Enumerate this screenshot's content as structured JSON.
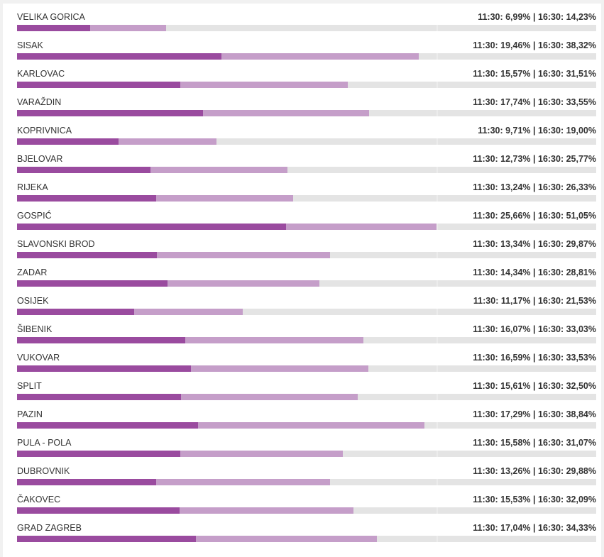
{
  "chart_data": {
    "type": "bar",
    "orientation": "horizontal",
    "scale_max_percent": 40,
    "series": [
      {
        "name": "11:30",
        "color": "#9a4b9f"
      },
      {
        "name": "16:30",
        "color": "#c59ec9"
      }
    ],
    "rows": [
      {
        "name": "VELIKA GORICA",
        "v1130": 6.99,
        "v1630": 14.23,
        "label": "11:30: 6,99% | 16:30: 14,23%"
      },
      {
        "name": "SISAK",
        "v1130": 19.46,
        "v1630": 38.32,
        "label": "11:30: 19,46% | 16:30: 38,32%"
      },
      {
        "name": "KARLOVAC",
        "v1130": 15.57,
        "v1630": 31.51,
        "label": "11:30: 15,57% | 16:30: 31,51%"
      },
      {
        "name": "VARAŽDIN",
        "v1130": 17.74,
        "v1630": 33.55,
        "label": "11:30: 17,74% | 16:30: 33,55%"
      },
      {
        "name": "KOPRIVNICA",
        "v1130": 9.71,
        "v1630": 19.0,
        "label": "11:30: 9,71% | 16:30: 19,00%"
      },
      {
        "name": "BJELOVAR",
        "v1130": 12.73,
        "v1630": 25.77,
        "label": "11:30: 12,73% | 16:30: 25,77%"
      },
      {
        "name": "RIJEKA",
        "v1130": 13.24,
        "v1630": 26.33,
        "label": "11:30: 13,24% | 16:30: 26,33%"
      },
      {
        "name": "GOSPIĆ",
        "v1130": 25.66,
        "v1630": 51.05,
        "label": "11:30: 25,66% | 16:30: 51,05%"
      },
      {
        "name": "SLAVONSKI BROD",
        "v1130": 13.34,
        "v1630": 29.87,
        "label": "11:30: 13,34% | 16:30: 29,87%"
      },
      {
        "name": "ZADAR",
        "v1130": 14.34,
        "v1630": 28.81,
        "label": "11:30: 14,34% | 16:30: 28,81%"
      },
      {
        "name": "OSIJEK",
        "v1130": 11.17,
        "v1630": 21.53,
        "label": "11:30: 11,17% | 16:30: 21,53%"
      },
      {
        "name": "ŠIBENIK",
        "v1130": 16.07,
        "v1630": 33.03,
        "label": "11:30: 16,07% | 16:30: 33,03%"
      },
      {
        "name": "VUKOVAR",
        "v1130": 16.59,
        "v1630": 33.53,
        "label": "11:30: 16,59% | 16:30: 33,53%"
      },
      {
        "name": "SPLIT",
        "v1130": 15.61,
        "v1630": 32.5,
        "label": "11:30: 15,61% | 16:30: 32,50%"
      },
      {
        "name": "PAZIN",
        "v1130": 17.29,
        "v1630": 38.84,
        "label": "11:30: 17,29% | 16:30: 38,84%"
      },
      {
        "name": "PULA - POLA",
        "v1130": 15.58,
        "v1630": 31.07,
        "label": "11:30: 15,58% | 16:30: 31,07%"
      },
      {
        "name": "DUBROVNIK",
        "v1130": 13.26,
        "v1630": 29.88,
        "label": "11:30: 13,26% | 16:30: 29,88%"
      },
      {
        "name": "ČAKOVEC",
        "v1130": 15.53,
        "v1630": 32.09,
        "label": "11:30: 15,53% | 16:30: 32,09%"
      },
      {
        "name": "GRAD ZAGREB",
        "v1130": 17.04,
        "v1630": 34.33,
        "label": "11:30: 17,04% | 16:30: 34,33%"
      }
    ]
  }
}
